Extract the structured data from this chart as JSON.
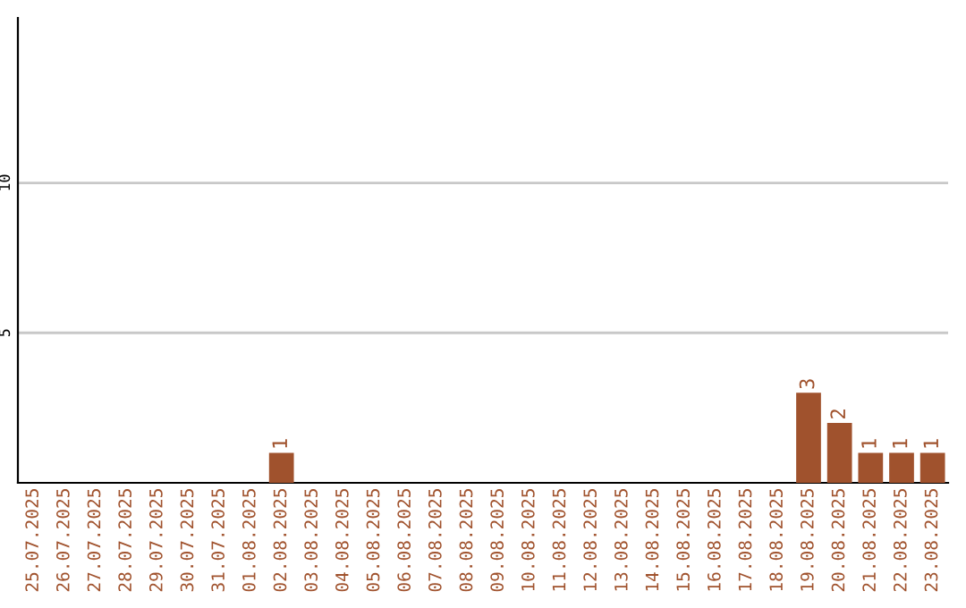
{
  "chart_data": {
    "type": "bar",
    "categories": [
      "25.07.2025",
      "26.07.2025",
      "27.07.2025",
      "28.07.2025",
      "29.07.2025",
      "30.07.2025",
      "31.07.2025",
      "01.08.2025",
      "02.08.2025",
      "03.08.2025",
      "04.08.2025",
      "05.08.2025",
      "06.08.2025",
      "07.08.2025",
      "08.08.2025",
      "09.08.2025",
      "10.08.2025",
      "11.08.2025",
      "12.08.2025",
      "13.08.2025",
      "14.08.2025",
      "15.08.2025",
      "16.08.2025",
      "17.08.2025",
      "18.08.2025",
      "19.08.2025",
      "20.08.2025",
      "21.08.2025",
      "22.08.2025",
      "23.08.2025"
    ],
    "values": [
      0,
      0,
      0,
      0,
      0,
      0,
      0,
      0,
      1,
      0,
      0,
      0,
      0,
      0,
      0,
      0,
      0,
      0,
      0,
      0,
      0,
      0,
      0,
      0,
      0,
      3,
      2,
      1,
      1,
      1
    ],
    "value_labels": [
      null,
      null,
      null,
      null,
      null,
      null,
      null,
      null,
      "1",
      null,
      null,
      null,
      null,
      null,
      null,
      null,
      null,
      null,
      null,
      null,
      null,
      null,
      null,
      null,
      null,
      "3",
      "2",
      "1",
      "1",
      "1"
    ],
    "color": "#a0522d",
    "ylim": [
      0,
      15.5
    ],
    "yticks": [
      5,
      10
    ],
    "grid": "y"
  }
}
